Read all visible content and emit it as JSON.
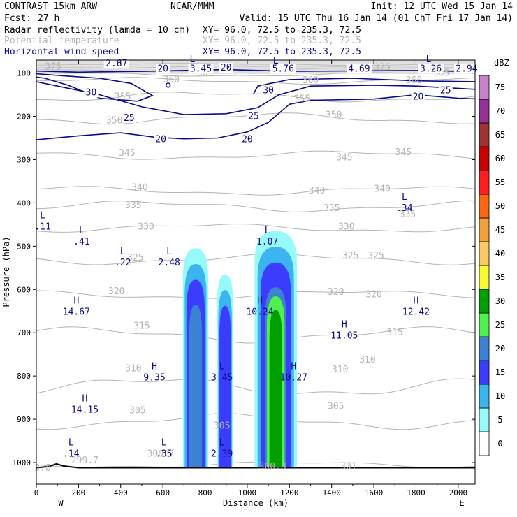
{
  "header": {
    "model": "CONTRAST 15km ARW",
    "org": "NCAR/MMM",
    "init": "Init: 12 UTC Wed 15 Jan 14",
    "fcst_label": "Fcst:",
    "fcst_value": "27 h",
    "valid": "Valid: 15 UTC Thu 16 Jan 14 (01 ChT Fri 17 Jan 14)"
  },
  "fields": [
    {
      "name": "Radar reflectivity (lamda = 10 cm)",
      "xy": "XY=  96.0, 72.5 to 235.3, 72.5",
      "color": "#000000"
    },
    {
      "name": "Potential temperature",
      "xy": "XY=  96.0, 72.5 to 235.3, 72.5",
      "color": "#b4b4b4"
    },
    {
      "name": "Horizontal wind speed",
      "xy": "XY=  96.0, 72.5 to 235.3, 72.5",
      "color": "#0a0a8c"
    }
  ],
  "chart_data": {
    "type": "cross-section contour",
    "xlabel": "Distance (km)",
    "ylabel": "Pressure (hPa)",
    "xlim": [
      0,
      2080
    ],
    "ylim": [
      1050,
      70
    ],
    "x_ticks": [
      0,
      200,
      400,
      600,
      800,
      1000,
      1200,
      1400,
      1600,
      1800,
      2000
    ],
    "y_ticks": [
      100,
      200,
      300,
      400,
      500,
      600,
      700,
      800,
      900,
      1000
    ],
    "x_end_labels": {
      "left": "W",
      "right": "E"
    },
    "colorbar": {
      "unit": "dBZ",
      "levels": [
        0,
        5,
        10,
        15,
        20,
        25,
        30,
        35,
        40,
        45,
        50,
        55,
        60,
        65,
        70,
        75
      ],
      "colors": [
        "#ffffff",
        "#96fafa",
        "#3cb4f0",
        "#3c3cff",
        "#3c82d2",
        "#50f050",
        "#00a000",
        "#fafa32",
        "#fac864",
        "#f0a03c",
        "#ff6414",
        "#ff1e1e",
        "#c80000",
        "#a03232",
        "#963296",
        "#c882c8"
      ]
    },
    "reflectivity_cells": [
      {
        "center_km": 755,
        "width_km": 120,
        "top_hPa": 505,
        "max_dBZ": 22
      },
      {
        "center_km": 895,
        "width_km": 75,
        "top_hPa": 565,
        "max_dBZ": 18
      },
      {
        "center_km": 1135,
        "width_km": 200,
        "top_hPa": 465,
        "max_dBZ": 33
      }
    ],
    "theta_labels": [
      {
        "text": "375",
        "x": 80,
        "p": 85
      },
      {
        "text": "365",
        "x": 800,
        "p": 100
      },
      {
        "text": "360",
        "x": 640,
        "p": 115
      },
      {
        "text": "375",
        "x": 1640,
        "p": 87
      },
      {
        "text": "365",
        "x": 1920,
        "p": 100
      },
      {
        "text": "360",
        "x": 1300,
        "p": 117
      },
      {
        "text": "360",
        "x": 1790,
        "p": 117
      },
      {
        "text": "355",
        "x": 410,
        "p": 155
      },
      {
        "text": "355",
        "x": 1260,
        "p": 160
      },
      {
        "text": "350",
        "x": 370,
        "p": 210
      },
      {
        "text": "350",
        "x": 1410,
        "p": 197
      },
      {
        "text": "345",
        "x": 430,
        "p": 285
      },
      {
        "text": "345",
        "x": 1460,
        "p": 295
      },
      {
        "text": "345",
        "x": 1740,
        "p": 283
      },
      {
        "text": "340",
        "x": 490,
        "p": 365
      },
      {
        "text": "340",
        "x": 1330,
        "p": 372
      },
      {
        "text": "340",
        "x": 1640,
        "p": 368
      },
      {
        "text": "335",
        "x": 460,
        "p": 406
      },
      {
        "text": "335",
        "x": 1400,
        "p": 412
      },
      {
        "text": "335",
        "x": 1760,
        "p": 427
      },
      {
        "text": "330",
        "x": 520,
        "p": 455
      },
      {
        "text": "330",
        "x": 1470,
        "p": 455
      },
      {
        "text": "325",
        "x": 470,
        "p": 527
      },
      {
        "text": "325",
        "x": 1490,
        "p": 522
      },
      {
        "text": "325",
        "x": 1610,
        "p": 522
      },
      {
        "text": "320",
        "x": 380,
        "p": 604
      },
      {
        "text": "320",
        "x": 1420,
        "p": 606
      },
      {
        "text": "320",
        "x": 1600,
        "p": 612
      },
      {
        "text": "315",
        "x": 500,
        "p": 684
      },
      {
        "text": "315",
        "x": 1700,
        "p": 700
      },
      {
        "text": "310",
        "x": 460,
        "p": 783
      },
      {
        "text": "310",
        "x": 1440,
        "p": 785
      },
      {
        "text": "310",
        "x": 1570,
        "p": 763
      },
      {
        "text": "305",
        "x": 480,
        "p": 880
      },
      {
        "text": "305",
        "x": 1420,
        "p": 870
      },
      {
        "text": "305",
        "x": 880,
        "p": 915
      },
      {
        "text": "299.7",
        "x": 230,
        "p": 995
      },
      {
        "text": "300.7",
        "x": 590,
        "p": 980
      },
      {
        "text": "300.8",
        "x": 1120,
        "p": 1009
      },
      {
        "text": "301",
        "x": 1480,
        "p": 1009
      },
      {
        "text": "3.8",
        "x": 30,
        "p": 1013
      }
    ],
    "wind_labels": [
      {
        "text": "20",
        "x": 600,
        "p": 90
      },
      {
        "text": "20",
        "x": 900,
        "p": 88
      },
      {
        "text": "30",
        "x": 260,
        "p": 145
      },
      {
        "text": "30",
        "x": 1100,
        "p": 140
      },
      {
        "text": "25",
        "x": 1940,
        "p": 140
      },
      {
        "text": "20",
        "x": 1810,
        "p": 155
      },
      {
        "text": "25",
        "x": 440,
        "p": 204
      },
      {
        "text": "25",
        "x": 1030,
        "p": 200
      },
      {
        "text": "20",
        "x": 590,
        "p": 253
      },
      {
        "text": "20",
        "x": 1000,
        "p": 253
      }
    ],
    "wind_max_labels": [
      {
        "text": "2.67",
        "x": 380,
        "p": 78
      },
      {
        "text": "3.45",
        "x": 780,
        "p": 90
      },
      {
        "text": "5.76",
        "x": 1170,
        "p": 90
      },
      {
        "text": "4.69",
        "x": 1530,
        "p": 90
      },
      {
        "text": "3.26",
        "x": 1870,
        "p": 90
      },
      {
        "text": "2.94",
        "x": 2040,
        "p": 90
      }
    ],
    "extrema_marks": [
      {
        "text": "L",
        "x": 740,
        "p": 68
      },
      {
        "text": "L",
        "x": 1135,
        "p": 72
      },
      {
        "text": "L",
        "x": 1860,
        "p": 68
      }
    ],
    "pressure_extrema": [
      {
        "letter": "L",
        "value": ".11",
        "x": 30,
        "p": 455
      },
      {
        "letter": "L",
        "value": ".41",
        "x": 215,
        "p": 490
      },
      {
        "letter": "L",
        "value": ".22",
        "x": 410,
        "p": 538
      },
      {
        "letter": "L",
        "value": "2.48",
        "x": 630,
        "p": 538
      },
      {
        "letter": "L",
        "value": "1.07",
        "x": 1095,
        "p": 490
      },
      {
        "letter": "L",
        "value": ".34",
        "x": 1745,
        "p": 412
      },
      {
        "letter": "H",
        "value": "14.67",
        "x": 190,
        "p": 652
      },
      {
        "letter": "H",
        "value": "10.24",
        "x": 1060,
        "p": 652
      },
      {
        "letter": "H",
        "value": "12.42",
        "x": 1800,
        "p": 652
      },
      {
        "letter": "H",
        "value": "11.05",
        "x": 1460,
        "p": 707
      },
      {
        "letter": "H",
        "value": "9.35",
        "x": 560,
        "p": 804
      },
      {
        "letter": "L",
        "value": "3.45",
        "x": 880,
        "p": 804
      },
      {
        "letter": "H",
        "value": "10.27",
        "x": 1220,
        "p": 804
      },
      {
        "letter": "H",
        "value": "14.15",
        "x": 230,
        "p": 878
      },
      {
        "letter": "L",
        "value": ".14",
        "x": 165,
        "p": 980
      },
      {
        "letter": "L",
        "value": ".35",
        "x": 605,
        "p": 980
      },
      {
        "letter": "L",
        "value": "2.39",
        "x": 880,
        "p": 980
      }
    ]
  }
}
